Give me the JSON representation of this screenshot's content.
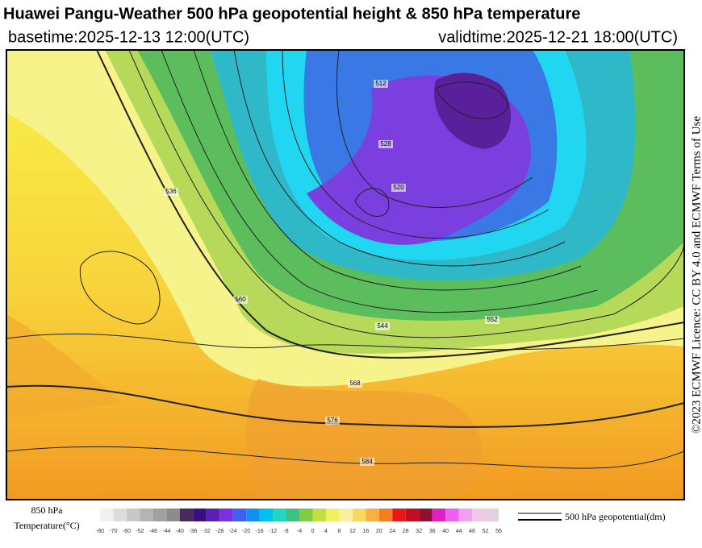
{
  "header": {
    "title": "Huawei Pangu-Weather 500 hPa geopotential height & 850 hPa temperature",
    "basetime": "basetime:2025-12-13 12:00(UTC)",
    "validtime": "validtime:2025-12-21 18:00(UTC)"
  },
  "map": {
    "contour_labels": [
      "544",
      "552",
      "560",
      "568",
      "576",
      "584",
      "528",
      "520",
      "512",
      "536"
    ]
  },
  "legend": {
    "temperature_title": "850 hPa",
    "temperature_unit": "Temperature(°C)",
    "ticks": [
      "-80",
      "-70",
      "-60",
      "-52",
      "-48",
      "-44",
      "-40",
      "-36",
      "-32",
      "-28",
      "-24",
      "-20",
      "-16",
      "-12",
      "-8",
      "-4",
      "0",
      "4",
      "8",
      "12",
      "16",
      "20",
      "24",
      "28",
      "32",
      "36",
      "40",
      "44",
      "48",
      "52",
      "56"
    ],
    "geopotential": "500 hPa geopotential(dm)"
  },
  "credit": "©2023 ECMWF Licence: CC BY 4.0 and ECMWF Terms of Use"
}
